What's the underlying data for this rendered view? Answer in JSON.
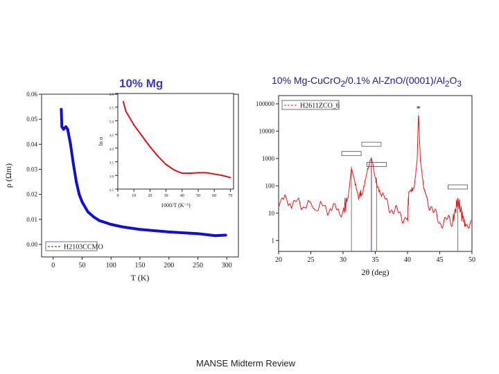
{
  "slide": {
    "title_left": "10% Mg",
    "title_right": "10% Mg-CuCrO",
    "title_right_parts": [
      "10% Mg-CuCrO",
      "2",
      "/0.1% Al-ZnO/(0001)/Al",
      "2",
      "O",
      "3"
    ],
    "footer": "MANSE Midterm Review",
    "title_color": "#3a3ab8"
  },
  "chart_data": [
    {
      "type": "line",
      "xlabel": "T (K)",
      "ylabel": "ρ (Ωm)",
      "xlim": [
        -20,
        320
      ],
      "ylim": [
        -0.005,
        0.06
      ],
      "xticks": [
        0,
        50,
        100,
        150,
        200,
        250,
        300
      ],
      "yticks": [
        "0.00",
        "0.01",
        "0.02",
        "0.03",
        "0.04",
        "0.05",
        "0.06"
      ],
      "legend": "bottom-left",
      "color": "#1010d0",
      "series": [
        {
          "name": "H2103CCMO",
          "x": [
            14,
            15,
            18,
            22,
            25,
            30,
            35,
            40,
            45,
            50,
            60,
            70,
            80,
            100,
            120,
            150,
            200,
            250,
            280,
            298
          ],
          "y": [
            0.054,
            0.047,
            0.046,
            0.047,
            0.046,
            0.04,
            0.032,
            0.025,
            0.02,
            0.017,
            0.013,
            0.011,
            0.0095,
            0.008,
            0.007,
            0.006,
            0.005,
            0.0043,
            0.0035,
            0.0037
          ]
        }
      ]
    },
    {
      "type": "line",
      "inset": true,
      "xlabel": "1000/T (K⁻¹)",
      "ylabel": "ln σ",
      "xlim": [
        0,
        72
      ],
      "ylim": [
        2.5,
        6.0
      ],
      "xticks": [
        0,
        10,
        20,
        30,
        40,
        50,
        60,
        70
      ],
      "yticks": [
        "2.5",
        "3.0",
        "3.5",
        "4.0",
        "4.5",
        "5.0",
        "5.5",
        "6.0"
      ],
      "color": "#dd1111",
      "series": [
        {
          "x": [
            3.4,
            5,
            10,
            15,
            20,
            25,
            30,
            35,
            40,
            45,
            50,
            55,
            60,
            65,
            70
          ],
          "y": [
            5.7,
            5.35,
            4.85,
            4.45,
            4.05,
            3.7,
            3.4,
            3.2,
            3.08,
            3.08,
            3.1,
            3.1,
            3.05,
            3.0,
            2.92
          ]
        }
      ]
    },
    {
      "type": "line",
      "xlabel": "2θ (deg)",
      "xlim": [
        20,
        50
      ],
      "ylim": [
        0.4,
        200000
      ],
      "yscale": "log",
      "xticks": [
        20,
        25,
        30,
        35,
        40,
        45,
        50
      ],
      "yticks": [
        "1",
        "10",
        "100",
        "1000",
        "10000",
        "100000"
      ],
      "legend": "top-left",
      "color": "#ee1111",
      "series": [
        {
          "name": "H2611ZCO_6",
          "x": [
            20,
            22,
            25,
            28,
            30,
            30.8,
            31.3,
            31.8,
            32.5,
            33,
            33.8,
            34.4,
            35,
            35.3,
            36,
            37,
            38,
            39,
            40,
            40.2,
            41,
            41.5,
            41.7,
            42,
            42.5,
            43,
            44,
            45,
            46,
            47,
            47.8,
            48.5,
            49,
            50
          ],
          "y": [
            30,
            25,
            18,
            15,
            12,
            40,
            500,
            150,
            30,
            50,
            400,
            1100,
            200,
            100,
            40,
            20,
            12,
            8,
            7,
            60,
            80,
            1000,
            45000,
            800,
            80,
            40,
            10,
            5,
            5,
            5,
            30,
            8,
            5,
            3
          ]
        }
      ],
      "reference_lines": [
        31.3,
        34.4,
        35.2,
        47.8
      ],
      "peak_marker": "*"
    }
  ]
}
